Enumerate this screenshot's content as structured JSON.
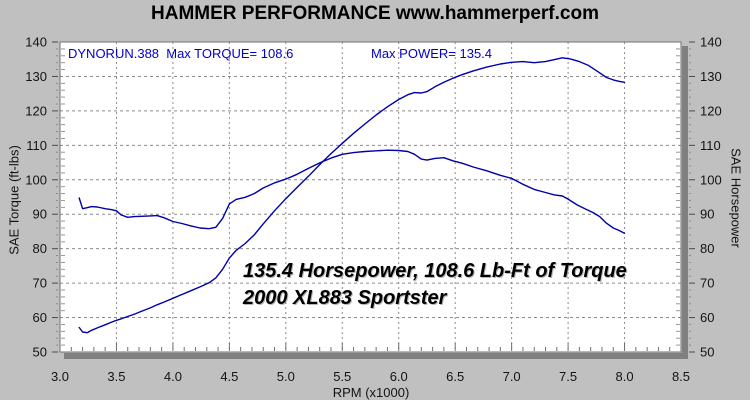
{
  "header": {
    "title_brand": "HAMMER PERFORMANCE",
    "title_url": "www.hammerperf.com"
  },
  "chart_data": {
    "type": "line",
    "title": "HAMMER PERFORMANCE www.hammerperf.com",
    "xlabel": "RPM (x1000)",
    "ylabel_left": "SAE Torque (ft-lbs)",
    "ylabel_right": "SAE Horsepower",
    "xlim": [
      3.0,
      8.5
    ],
    "ylim": [
      50,
      140
    ],
    "x_tick_labels": [
      "3.0",
      "3.5",
      "4.0",
      "4.5",
      "5.0",
      "5.5",
      "6.0",
      "6.5",
      "7.0",
      "7.5",
      "8.0",
      "8.5"
    ],
    "x_ticks": [
      3.0,
      3.5,
      4.0,
      4.5,
      5.0,
      5.5,
      6.0,
      6.5,
      7.0,
      7.5,
      8.0,
      8.5
    ],
    "y_ticks": [
      50,
      60,
      70,
      80,
      90,
      100,
      110,
      120,
      130,
      140
    ],
    "grid": "dashed-both-axes",
    "legend_position": "none",
    "max_torque": 108.6,
    "max_power": 135.4,
    "in_plot_labels": {
      "run_torque": "DYNORUN.388  Max TORQUE= 108.6",
      "power": "Max POWER= 135.4"
    },
    "annotation": {
      "line1": "135.4 Horsepower, 108.6 Lb-Ft of Torque",
      "line2": "2000 XL883 Sportster"
    },
    "series": [
      {
        "name": "SAE Torque (ft-lbs)",
        "color": "#0000aa",
        "points": [
          [
            3.17,
            94.7
          ],
          [
            3.2,
            91.6
          ],
          [
            3.24,
            91.9
          ],
          [
            3.28,
            92.2
          ],
          [
            3.33,
            92.1
          ],
          [
            3.4,
            91.6
          ],
          [
            3.46,
            91.3
          ],
          [
            3.5,
            91.0
          ],
          [
            3.54,
            89.8
          ],
          [
            3.6,
            89.1
          ],
          [
            3.66,
            89.3
          ],
          [
            3.72,
            89.4
          ],
          [
            3.8,
            89.5
          ],
          [
            3.86,
            89.6
          ],
          [
            3.92,
            89.0
          ],
          [
            4.0,
            87.9
          ],
          [
            4.08,
            87.3
          ],
          [
            4.16,
            86.6
          ],
          [
            4.24,
            86.0
          ],
          [
            4.32,
            85.8
          ],
          [
            4.38,
            86.2
          ],
          [
            4.44,
            88.8
          ],
          [
            4.5,
            93.0
          ],
          [
            4.56,
            94.3
          ],
          [
            4.64,
            94.9
          ],
          [
            4.72,
            96.0
          ],
          [
            4.8,
            97.6
          ],
          [
            4.9,
            99.1
          ],
          [
            5.0,
            100.2
          ],
          [
            5.1,
            101.6
          ],
          [
            5.2,
            103.3
          ],
          [
            5.3,
            104.9
          ],
          [
            5.4,
            106.3
          ],
          [
            5.5,
            107.4
          ],
          [
            5.6,
            107.9
          ],
          [
            5.7,
            108.2
          ],
          [
            5.8,
            108.4
          ],
          [
            5.9,
            108.6
          ],
          [
            6.0,
            108.5
          ],
          [
            6.08,
            108.2
          ],
          [
            6.14,
            107.4
          ],
          [
            6.2,
            106.0
          ],
          [
            6.25,
            105.7
          ],
          [
            6.32,
            106.2
          ],
          [
            6.4,
            106.4
          ],
          [
            6.48,
            105.5
          ],
          [
            6.56,
            104.8
          ],
          [
            6.66,
            103.7
          ],
          [
            6.78,
            102.6
          ],
          [
            6.9,
            101.3
          ],
          [
            7.0,
            100.4
          ],
          [
            7.1,
            98.7
          ],
          [
            7.2,
            97.2
          ],
          [
            7.3,
            96.3
          ],
          [
            7.38,
            95.6
          ],
          [
            7.45,
            95.3
          ],
          [
            7.5,
            94.4
          ],
          [
            7.58,
            92.7
          ],
          [
            7.66,
            91.4
          ],
          [
            7.72,
            90.5
          ],
          [
            7.78,
            89.3
          ],
          [
            7.84,
            87.4
          ],
          [
            7.9,
            86.0
          ],
          [
            7.95,
            85.3
          ],
          [
            8.0,
            84.5
          ]
        ]
      },
      {
        "name": "SAE Horsepower",
        "color": "#0000aa",
        "points": [
          [
            3.17,
            57.1
          ],
          [
            3.2,
            55.8
          ],
          [
            3.24,
            55.6
          ],
          [
            3.28,
            56.3
          ],
          [
            3.33,
            57.0
          ],
          [
            3.4,
            57.9
          ],
          [
            3.46,
            58.7
          ],
          [
            3.5,
            59.2
          ],
          [
            3.54,
            59.6
          ],
          [
            3.6,
            60.3
          ],
          [
            3.66,
            61.0
          ],
          [
            3.72,
            61.8
          ],
          [
            3.8,
            62.8
          ],
          [
            3.86,
            63.7
          ],
          [
            3.92,
            64.5
          ],
          [
            4.0,
            65.6
          ],
          [
            4.08,
            66.7
          ],
          [
            4.16,
            67.8
          ],
          [
            4.24,
            68.9
          ],
          [
            4.32,
            70.1
          ],
          [
            4.38,
            71.5
          ],
          [
            4.44,
            74.0
          ],
          [
            4.5,
            77.3
          ],
          [
            4.56,
            79.5
          ],
          [
            4.64,
            81.5
          ],
          [
            4.72,
            84.0
          ],
          [
            4.8,
            87.2
          ],
          [
            4.9,
            91.0
          ],
          [
            5.0,
            94.5
          ],
          [
            5.1,
            97.8
          ],
          [
            5.2,
            101.0
          ],
          [
            5.3,
            104.4
          ],
          [
            5.4,
            107.6
          ],
          [
            5.5,
            110.6
          ],
          [
            5.6,
            113.5
          ],
          [
            5.7,
            116.2
          ],
          [
            5.8,
            118.8
          ],
          [
            5.9,
            121.2
          ],
          [
            6.0,
            123.3
          ],
          [
            6.08,
            124.7
          ],
          [
            6.14,
            125.3
          ],
          [
            6.2,
            125.2
          ],
          [
            6.25,
            125.6
          ],
          [
            6.32,
            127.0
          ],
          [
            6.4,
            128.3
          ],
          [
            6.48,
            129.5
          ],
          [
            6.56,
            130.5
          ],
          [
            6.66,
            131.6
          ],
          [
            6.78,
            132.7
          ],
          [
            6.9,
            133.6
          ],
          [
            7.0,
            134.1
          ],
          [
            7.1,
            134.3
          ],
          [
            7.2,
            134.0
          ],
          [
            7.3,
            134.3
          ],
          [
            7.38,
            134.9
          ],
          [
            7.45,
            135.4
          ],
          [
            7.52,
            135.1
          ],
          [
            7.6,
            134.3
          ],
          [
            7.68,
            133.2
          ],
          [
            7.76,
            131.5
          ],
          [
            7.84,
            129.7
          ],
          [
            7.9,
            129.0
          ],
          [
            7.95,
            128.6
          ],
          [
            8.0,
            128.3
          ]
        ]
      }
    ]
  },
  "colors": {
    "background": "#c0c0c0",
    "plot_background": "#ffffff",
    "grid": "#8c8c8c",
    "shadow": "#808080",
    "border": "#6f6f6f",
    "curve": "#0000aa",
    "blue_text": "#0000cd",
    "text": "#141414"
  }
}
